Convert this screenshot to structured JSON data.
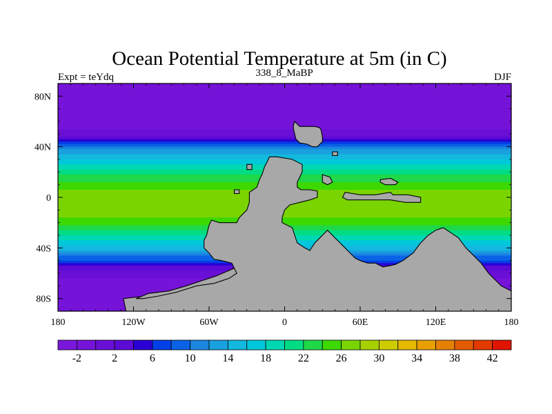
{
  "chart_data": {
    "type": "heatmap",
    "title": "Ocean Potential Temperature at 5m (in C)",
    "subtitle_left": "Expt = teYdq",
    "subtitle_center": "338_8_MaBP",
    "subtitle_right": "DJF",
    "xlabel": "",
    "ylabel": "",
    "xlim": [
      -180,
      180
    ],
    "ylim": [
      -90,
      90
    ],
    "x_ticks": [
      {
        "value": -180,
        "label": "180"
      },
      {
        "value": -120,
        "label": "120W"
      },
      {
        "value": -60,
        "label": "60W"
      },
      {
        "value": 0,
        "label": "0"
      },
      {
        "value": 60,
        "label": "60E"
      },
      {
        "value": 120,
        "label": "120E"
      },
      {
        "value": 180,
        "label": "180"
      }
    ],
    "y_ticks": [
      {
        "value": 80,
        "label": "80N"
      },
      {
        "value": 40,
        "label": "40N"
      },
      {
        "value": 0,
        "label": "0"
      },
      {
        "value": -40,
        "label": "40S"
      },
      {
        "value": -80,
        "label": "80S"
      }
    ],
    "colorbar": {
      "levels": [
        -4,
        -2,
        0,
        2,
        4,
        6,
        8,
        10,
        12,
        14,
        16,
        18,
        20,
        22,
        24,
        26,
        28,
        30,
        32,
        34,
        36,
        38,
        40,
        42
      ],
      "labels": [
        {
          "value": -2,
          "label": "-2"
        },
        {
          "value": 2,
          "label": "2"
        },
        {
          "value": 6,
          "label": "6"
        },
        {
          "value": 10,
          "label": "10"
        },
        {
          "value": 14,
          "label": "14"
        },
        {
          "value": 18,
          "label": "18"
        },
        {
          "value": 22,
          "label": "22"
        },
        {
          "value": 26,
          "label": "26"
        },
        {
          "value": 30,
          "label": "30"
        },
        {
          "value": 34,
          "label": "34"
        },
        {
          "value": 38,
          "label": "38"
        },
        {
          "value": 42,
          "label": "42"
        }
      ],
      "colors": [
        "#7b17dc",
        "#7513d8",
        "#6a0fd6",
        "#5c0bd6",
        "#2a00d4",
        "#0040e6",
        "#0a63e6",
        "#1a86e0",
        "#19a0de",
        "#13b8de",
        "#00c8da",
        "#00d8b4",
        "#00dc84",
        "#1ed848",
        "#3cd800",
        "#7ad400",
        "#a8d000",
        "#cccc00",
        "#e6b800",
        "#e8a000",
        "#e68000",
        "#e45c00",
        "#e23a00",
        "#e01400"
      ]
    },
    "zonal_profile": [
      {
        "lat": 90,
        "temp": -1.5
      },
      {
        "lat": 60,
        "temp": -1.5
      },
      {
        "lat": 50,
        "temp": 1
      },
      {
        "lat": 44,
        "temp": 5
      },
      {
        "lat": 40,
        "temp": 11
      },
      {
        "lat": 30,
        "temp": 16
      },
      {
        "lat": 20,
        "temp": 21
      },
      {
        "lat": 10,
        "temp": 25
      },
      {
        "lat": 0,
        "temp": 27
      },
      {
        "lat": -10,
        "temp": 27
      },
      {
        "lat": -20,
        "temp": 25
      },
      {
        "lat": -30,
        "temp": 20
      },
      {
        "lat": -40,
        "temp": 15
      },
      {
        "lat": -48,
        "temp": 9
      },
      {
        "lat": -56,
        "temp": 3
      },
      {
        "lat": -64,
        "temp": 0
      },
      {
        "lat": -90,
        "temp": -1.5
      }
    ],
    "land_masses": [
      {
        "name": "northern-island",
        "points": [
          [
            8,
            60
          ],
          [
            10,
            58
          ],
          [
            12,
            56
          ],
          [
            24,
            56
          ],
          [
            28,
            55
          ],
          [
            29,
            53
          ],
          [
            30,
            48
          ],
          [
            30,
            44
          ],
          [
            26,
            40
          ],
          [
            22,
            40
          ],
          [
            18,
            42
          ],
          [
            12,
            43
          ],
          [
            9,
            46
          ],
          [
            8,
            50
          ],
          [
            7,
            54
          ],
          [
            7,
            57
          ]
        ]
      },
      {
        "name": "continent-west",
        "points": [
          [
            -12,
            32
          ],
          [
            -6,
            32
          ],
          [
            6,
            30
          ],
          [
            14,
            26
          ],
          [
            14,
            20
          ],
          [
            12,
            16
          ],
          [
            10,
            12
          ],
          [
            10,
            8
          ],
          [
            13,
            6
          ],
          [
            20,
            6
          ],
          [
            26,
            5
          ],
          [
            26,
            0
          ],
          [
            20,
            -2
          ],
          [
            12,
            -4
          ],
          [
            4,
            -6
          ],
          [
            0,
            -10
          ],
          [
            -2,
            -16
          ],
          [
            -2,
            -20
          ],
          [
            6,
            -24
          ],
          [
            8,
            -30
          ],
          [
            10,
            -36
          ],
          [
            16,
            -40
          ],
          [
            20,
            -42
          ],
          [
            24,
            -36
          ],
          [
            28,
            -32
          ],
          [
            32,
            -28
          ],
          [
            34,
            -26
          ],
          [
            40,
            -32
          ],
          [
            44,
            -36
          ],
          [
            48,
            -40
          ],
          [
            52,
            -44
          ],
          [
            56,
            -48
          ],
          [
            60,
            -50
          ],
          [
            66,
            -52
          ],
          [
            72,
            -52
          ],
          [
            78,
            -55
          ],
          [
            84,
            -54
          ],
          [
            88,
            -53
          ],
          [
            94,
            -50
          ],
          [
            102,
            -44
          ],
          [
            108,
            -36
          ],
          [
            114,
            -30
          ],
          [
            120,
            -26
          ],
          [
            126,
            -24
          ],
          [
            132,
            -28
          ],
          [
            138,
            -32
          ],
          [
            144,
            -40
          ],
          [
            150,
            -46
          ],
          [
            156,
            -52
          ],
          [
            162,
            -60
          ],
          [
            168,
            -66
          ],
          [
            172,
            -70
          ],
          [
            176,
            -72
          ],
          [
            180,
            -74
          ],
          [
            180,
            -90
          ],
          [
            -126,
            -90
          ],
          [
            -128,
            -80
          ],
          [
            -110,
            -78
          ],
          [
            -96,
            -77
          ],
          [
            -82,
            -72
          ],
          [
            -70,
            -69
          ],
          [
            -56,
            -66
          ],
          [
            -48,
            -64
          ],
          [
            -44,
            -60
          ],
          [
            -40,
            -56
          ],
          [
            -42,
            -52
          ],
          [
            -50,
            -50
          ],
          [
            -56,
            -49
          ],
          [
            -60,
            -44
          ],
          [
            -64,
            -40
          ],
          [
            -64,
            -34
          ],
          [
            -62,
            -30
          ],
          [
            -60,
            -22
          ],
          [
            -58,
            -18
          ],
          [
            -52,
            -20
          ],
          [
            -44,
            -20
          ],
          [
            -38,
            -20
          ],
          [
            -36,
            -16
          ],
          [
            -30,
            -10
          ],
          [
            -28,
            -4
          ],
          [
            -28,
            4
          ],
          [
            -22,
            8
          ],
          [
            -20,
            14
          ],
          [
            -18,
            18
          ],
          [
            -16,
            24
          ],
          [
            -14,
            28
          ]
        ]
      },
      {
        "name": "lagoon-west",
        "points": [
          [
            -118,
            -80
          ],
          [
            -108,
            -76
          ],
          [
            -92,
            -74
          ],
          [
            -78,
            -70
          ],
          [
            -66,
            -66
          ],
          [
            -54,
            -62
          ],
          [
            -40,
            -56
          ],
          [
            -38,
            -60
          ],
          [
            -44,
            -64
          ],
          [
            -56,
            -68
          ],
          [
            -70,
            -70
          ],
          [
            -86,
            -75
          ],
          [
            -100,
            -78
          ],
          [
            -112,
            -80
          ]
        ]
      },
      {
        "name": "eastern-strip",
        "points": [
          [
            48,
            4
          ],
          [
            60,
            2
          ],
          [
            72,
            2
          ],
          [
            84,
            4
          ],
          [
            86,
            2
          ],
          [
            98,
            2
          ],
          [
            108,
            0
          ],
          [
            108,
            -4
          ],
          [
            96,
            -4
          ],
          [
            84,
            -2
          ],
          [
            72,
            -2
          ],
          [
            60,
            -2
          ],
          [
            50,
            -2
          ],
          [
            46,
            0
          ]
        ]
      },
      {
        "name": "small-isle-1",
        "points": [
          [
            76,
            14
          ],
          [
            84,
            15
          ],
          [
            90,
            12
          ],
          [
            88,
            10
          ],
          [
            80,
            10
          ],
          [
            76,
            12
          ]
        ]
      },
      {
        "name": "small-isle-2",
        "points": [
          [
            30,
            18
          ],
          [
            36,
            16
          ],
          [
            38,
            12
          ],
          [
            34,
            10
          ],
          [
            30,
            12
          ]
        ]
      },
      {
        "name": "small-isle-3",
        "points": [
          [
            -40,
            6
          ],
          [
            -36,
            6
          ],
          [
            -36,
            3
          ],
          [
            -40,
            3
          ]
        ]
      },
      {
        "name": "small-isle-4",
        "points": [
          [
            38,
            36
          ],
          [
            42,
            36
          ],
          [
            42,
            33
          ],
          [
            38,
            33
          ]
        ]
      },
      {
        "name": "small-isle-5",
        "points": [
          [
            -30,
            26
          ],
          [
            -26,
            26
          ],
          [
            -26,
            22
          ],
          [
            -30,
            22
          ]
        ]
      }
    ]
  }
}
